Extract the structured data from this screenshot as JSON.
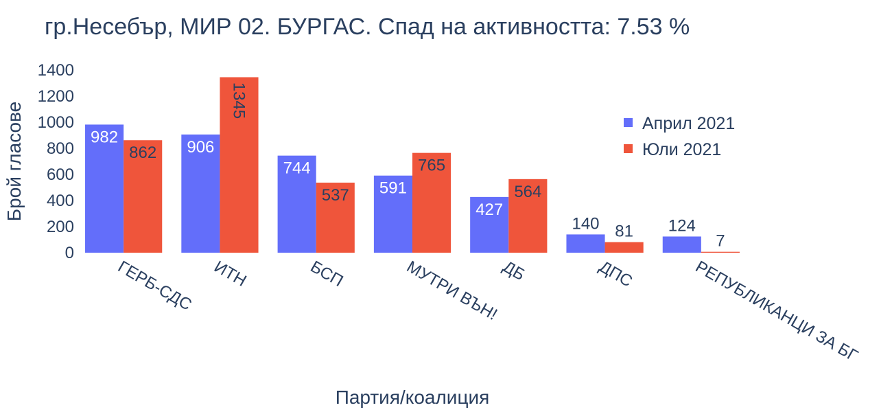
{
  "chart_data": {
    "type": "bar",
    "title": "гр.Несебър, МИР 02. БУРГАС. Спад на активността: 7.53  %",
    "xlabel": "Партия/коалиция",
    "ylabel": "Брой гласове",
    "ylim": [
      0,
      1400
    ],
    "yticks": [
      0,
      200,
      400,
      600,
      800,
      1000,
      1200,
      1400
    ],
    "grid": false,
    "legend_position": "top-right",
    "categories": [
      "ГЕРБ-СДС",
      "ИТН",
      "БСП",
      "МУТРИ ВЪН!",
      "ДБ",
      "ДПС",
      "РЕПУБЛИКАНЦИ ЗА БГ"
    ],
    "series": [
      {
        "name": "Април 2021",
        "color": "#636efa",
        "values": [
          982,
          906,
          744,
          591,
          427,
          140,
          124
        ]
      },
      {
        "name": "Юли 2021",
        "color": "#ef553b",
        "values": [
          862,
          1345,
          537,
          765,
          564,
          81,
          7
        ]
      }
    ]
  }
}
